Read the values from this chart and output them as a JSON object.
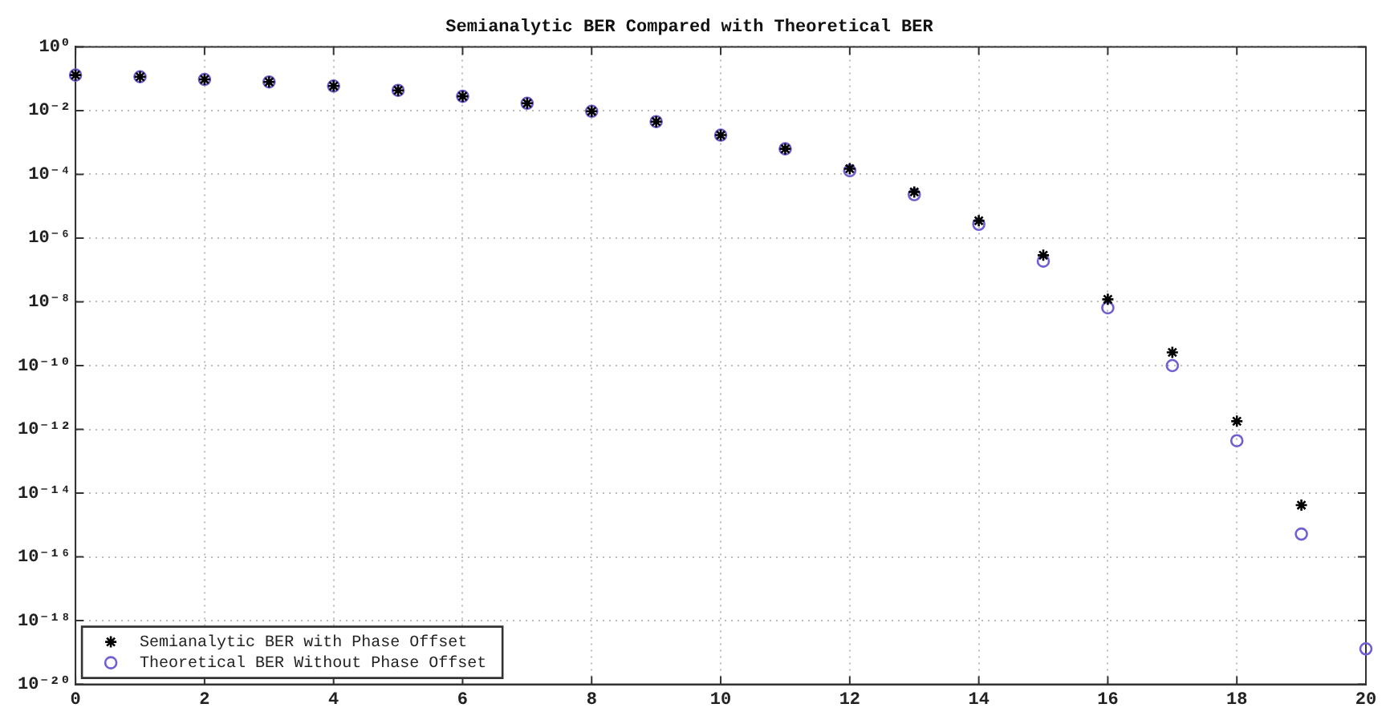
{
  "chart_data": {
    "type": "scatter",
    "title": "Semianalytic BER Compared with Theoretical BER",
    "x": [
      0,
      1,
      2,
      3,
      4,
      5,
      6,
      7,
      8,
      9,
      10,
      11,
      12,
      13,
      14,
      15,
      16,
      17,
      18,
      19,
      20
    ],
    "series": [
      {
        "name": "Semianalytic BER with Phase Offset",
        "color": "#000000",
        "marker": "cross",
        "values": [
          0.13,
          0.115,
          0.095,
          0.079,
          0.059,
          0.043,
          0.028,
          0.017,
          0.0095,
          0.0045,
          0.0017,
          0.00063,
          0.00015,
          2.8e-05,
          3.5e-06,
          2.9e-07,
          1.2e-08,
          2.6e-10,
          1.8e-12,
          4.2e-15,
          null
        ]
      },
      {
        "name": "Theoretical BER Without Phase Offset",
        "color": "#6f5fd0",
        "marker": "circle",
        "values": [
          0.13,
          0.115,
          0.095,
          0.079,
          0.059,
          0.043,
          0.028,
          0.017,
          0.0095,
          0.0045,
          0.0017,
          0.00063,
          0.00013,
          2.3e-05,
          2.7e-06,
          1.9e-07,
          6.5e-09,
          1e-10,
          4.4e-13,
          5.2e-16,
          1.3e-19
        ]
      }
    ],
    "xlim": [
      0,
      20
    ],
    "xticks": [
      0,
      2,
      4,
      6,
      8,
      10,
      12,
      14,
      16,
      18,
      20
    ],
    "ylim": [
      1e-20,
      1
    ],
    "log": true,
    "yticks": [
      {
        "value": 1,
        "label": "10⁰"
      },
      {
        "value": 0.01,
        "label": "10⁻²"
      },
      {
        "value": 0.0001,
        "label": "10⁻⁴"
      },
      {
        "value": 1e-06,
        "label": "10⁻⁶"
      },
      {
        "value": 1e-08,
        "label": "10⁻⁸"
      },
      {
        "value": 1e-10,
        "label": "10⁻¹⁰"
      },
      {
        "value": 1e-12,
        "label": "10⁻¹²"
      },
      {
        "value": 1e-14,
        "label": "10⁻¹⁴"
      },
      {
        "value": 1e-16,
        "label": "10⁻¹⁶"
      },
      {
        "value": 1e-18,
        "label": "10⁻¹⁸"
      },
      {
        "value": 1e-20,
        "label": "10⁻²⁰"
      }
    ],
    "grid": true,
    "legend": "bottom left"
  }
}
